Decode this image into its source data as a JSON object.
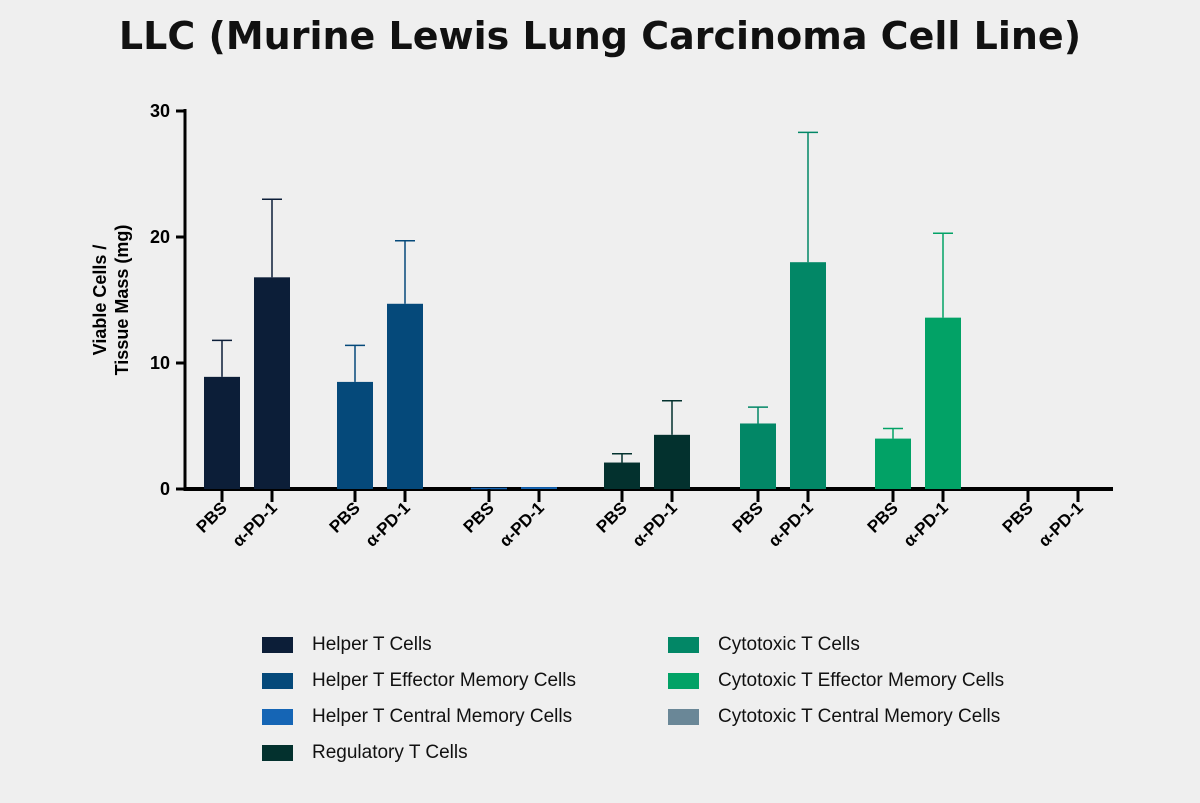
{
  "chart_data": {
    "type": "bar",
    "title": "LLC (Murine Lewis Lung Carcinoma Cell Line)",
    "ylabel": "Viable Cells / Tissue Mass (mg)",
    "ylabel_lines": [
      "Viable Cells /",
      "Tissue Mass (mg)"
    ],
    "ylim": [
      0,
      30
    ],
    "yticks": [
      0,
      10,
      20,
      30
    ],
    "grid": false,
    "legend_placement": "bottom",
    "categories": [
      "PBS",
      "α-PD-1"
    ],
    "series": [
      {
        "name": "Helper T Cells",
        "color": "#0c1e38",
        "values": [
          8.9,
          16.8
        ],
        "error_upper": [
          11.8,
          23.0
        ]
      },
      {
        "name": "Helper T Effector Memory Cells",
        "color": "#05497a",
        "values": [
          8.5,
          14.7
        ],
        "error_upper": [
          11.4,
          19.7
        ]
      },
      {
        "name": "Helper T Central Memory Cells",
        "color": "#1565b5",
        "values": [
          0.1,
          0.15
        ],
        "error_upper": [
          0.1,
          0.15
        ]
      },
      {
        "name": "Regulatory T Cells",
        "color": "#03312e",
        "values": [
          2.1,
          4.3
        ],
        "error_upper": [
          2.8,
          7.0
        ]
      },
      {
        "name": "Cytotoxic T Cells",
        "color": "#028766",
        "values": [
          5.2,
          18.0
        ],
        "error_upper": [
          6.5,
          28.3
        ]
      },
      {
        "name": "Cytotoxic T Effector Memory Cells",
        "color": "#02a266",
        "values": [
          4.0,
          13.6
        ],
        "error_upper": [
          4.8,
          20.3
        ]
      },
      {
        "name": "Cytotoxic T Central Memory Cells",
        "color": "#6a8797",
        "values": [
          0,
          0
        ],
        "error_upper": [
          0,
          0
        ]
      }
    ]
  }
}
